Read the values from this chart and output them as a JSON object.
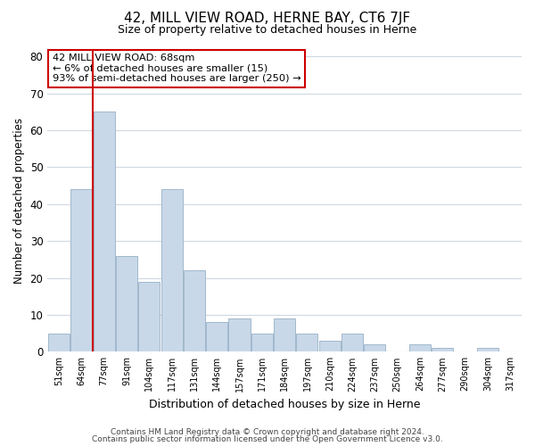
{
  "title": "42, MILL VIEW ROAD, HERNE BAY, CT6 7JF",
  "subtitle": "Size of property relative to detached houses in Herne",
  "xlabel": "Distribution of detached houses by size in Herne",
  "ylabel": "Number of detached properties",
  "bar_labels": [
    "51sqm",
    "64sqm",
    "77sqm",
    "91sqm",
    "104sqm",
    "117sqm",
    "131sqm",
    "144sqm",
    "157sqm",
    "171sqm",
    "184sqm",
    "197sqm",
    "210sqm",
    "224sqm",
    "237sqm",
    "250sqm",
    "264sqm",
    "277sqm",
    "290sqm",
    "304sqm",
    "317sqm"
  ],
  "bar_values": [
    5,
    44,
    65,
    26,
    19,
    44,
    22,
    8,
    9,
    5,
    9,
    5,
    3,
    5,
    2,
    0,
    2,
    1,
    0,
    1,
    0
  ],
  "bar_color": "#c8d8e8",
  "bar_edge_color": "#a0b8cc",
  "vline_x": 1.5,
  "vline_color": "#cc0000",
  "annotation_lines": [
    "42 MILL VIEW ROAD: 68sqm",
    "← 6% of detached houses are smaller (15)",
    "93% of semi-detached houses are larger (250) →"
  ],
  "ylim": [
    0,
    82
  ],
  "yticks": [
    0,
    10,
    20,
    30,
    40,
    50,
    60,
    70,
    80
  ],
  "footer_lines": [
    "Contains HM Land Registry data © Crown copyright and database right 2024.",
    "Contains public sector information licensed under the Open Government Licence v3.0."
  ],
  "background_color": "#ffffff",
  "grid_color": "#d0d8e0"
}
